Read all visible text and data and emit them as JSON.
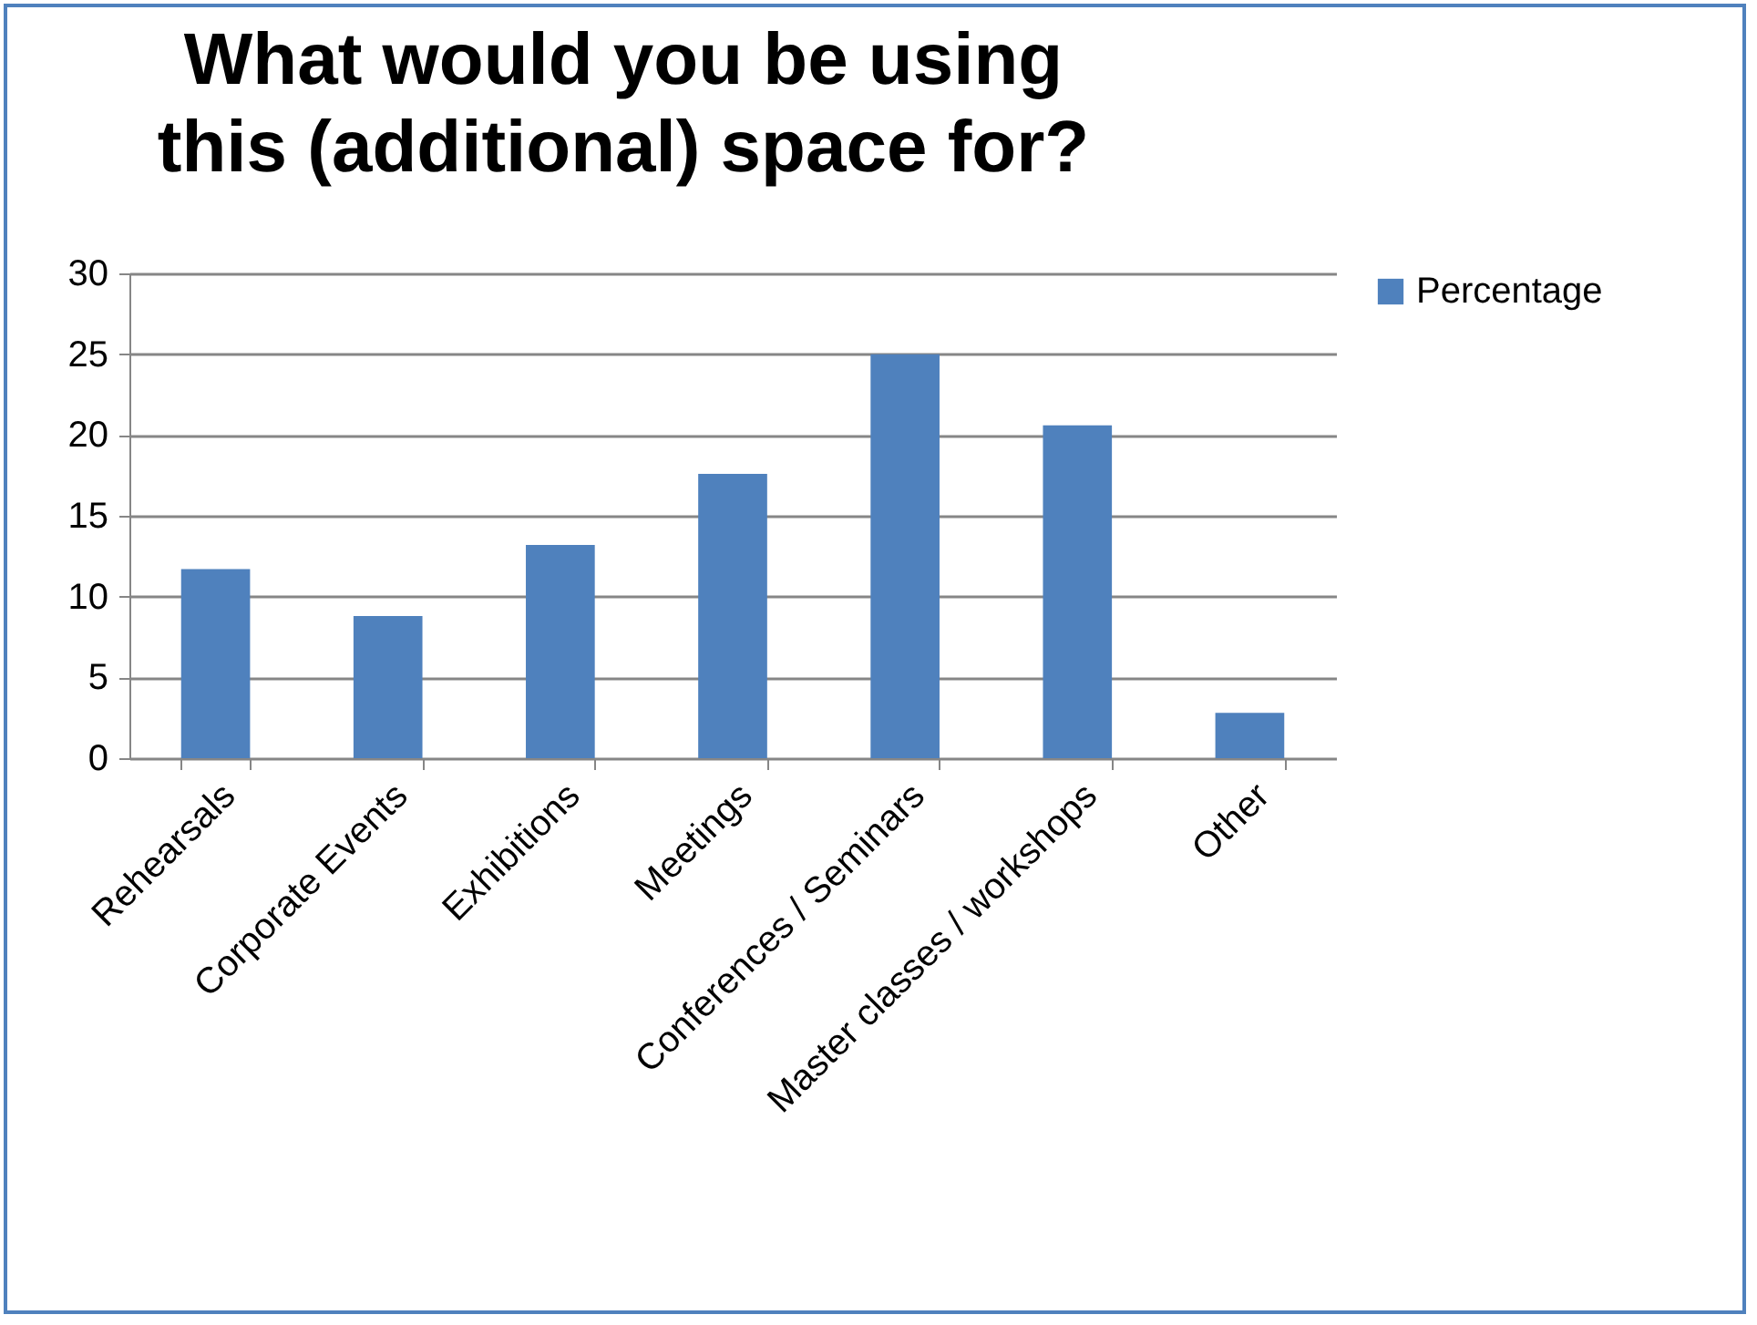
{
  "chart_data": {
    "type": "bar",
    "title": "What would you be using this (additional) space for?",
    "categories": [
      "Rehearsals",
      "Corporate Events",
      "Exhibitions",
      "Meetings",
      "Conferences / Seminars",
      "Master classes / workshops",
      "Other"
    ],
    "series": [
      {
        "name": "Percentage",
        "color": "#4f81bd",
        "values": [
          11.7,
          8.8,
          13.2,
          17.6,
          25.0,
          20.6,
          2.8
        ]
      }
    ],
    "ylim": [
      0,
      30
    ],
    "yticks": [
      0,
      5,
      10,
      15,
      20,
      25,
      30
    ],
    "grid": "y",
    "legend": "right"
  }
}
